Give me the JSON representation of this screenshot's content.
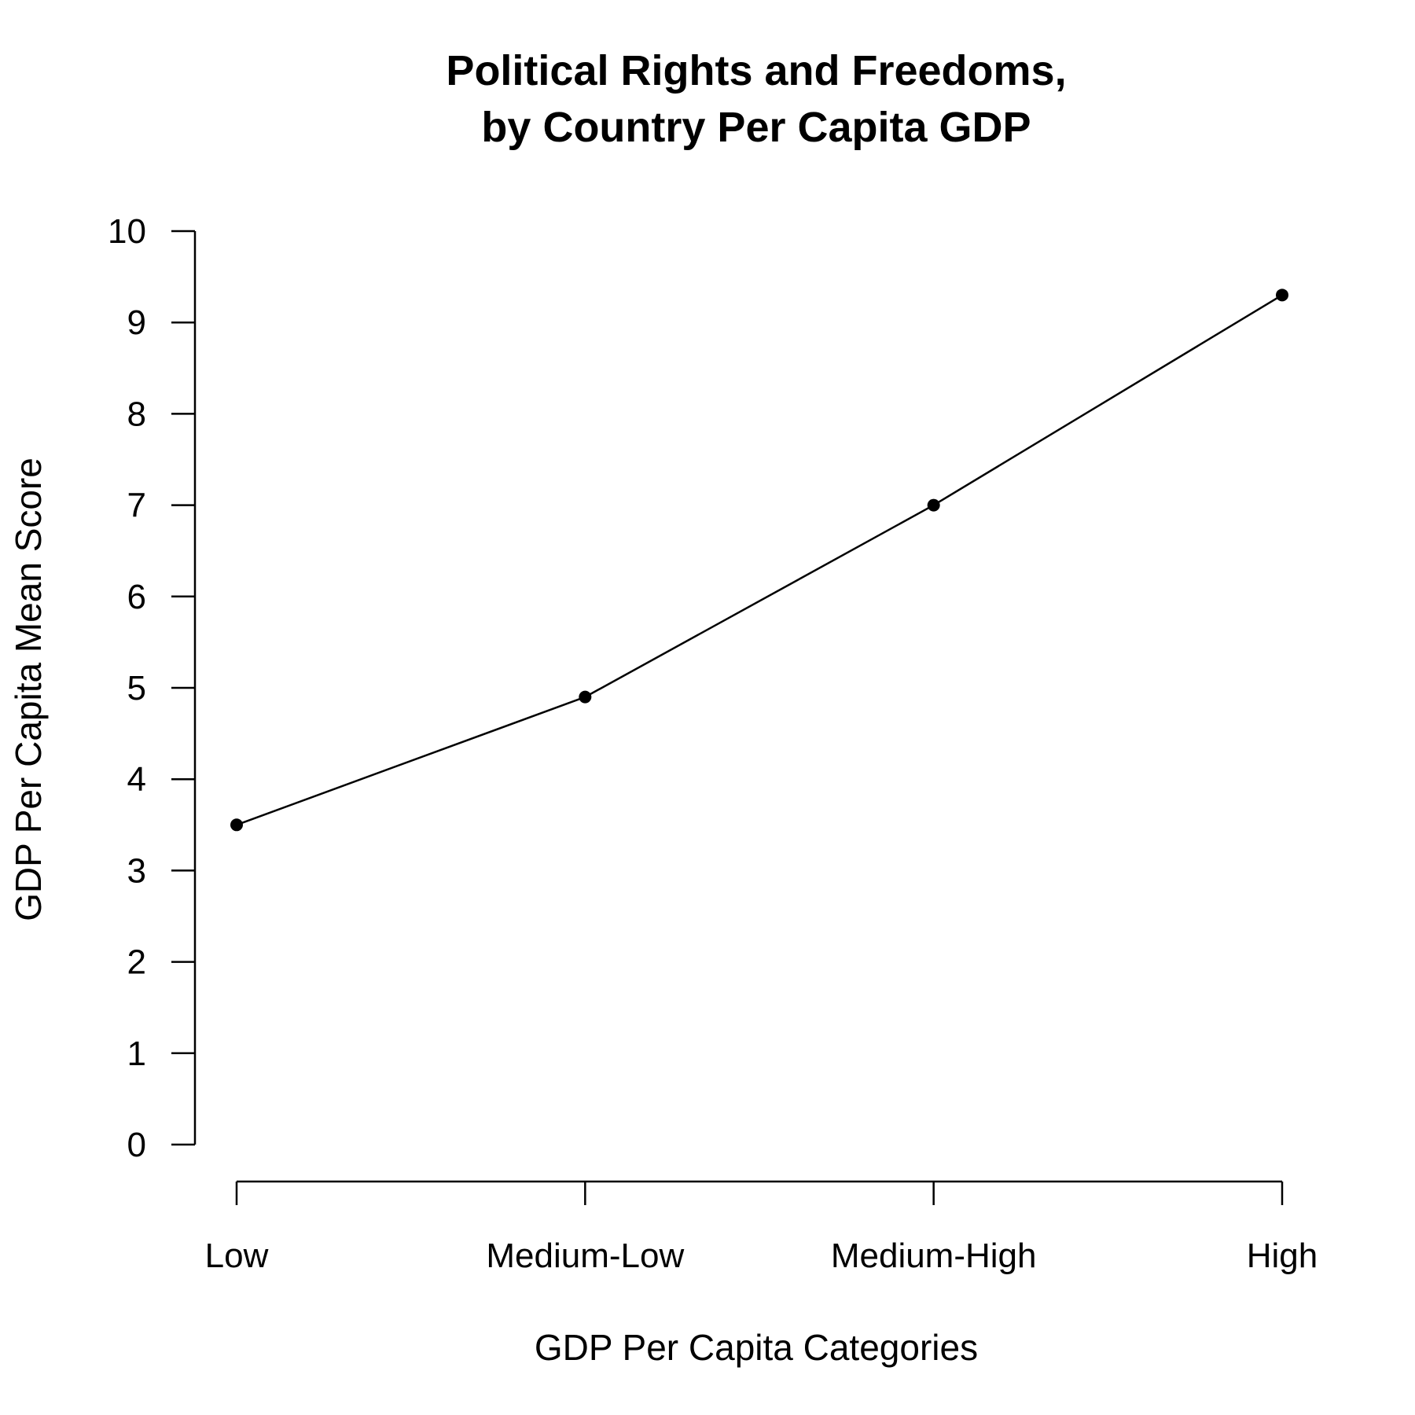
{
  "chart_data": {
    "type": "line",
    "title_lines": [
      "Political Rights and Freedoms,",
      "by Country Per Capita GDP"
    ],
    "xlabel": "GDP Per Capita Categories",
    "ylabel": "GDP Per Capita Mean Score",
    "categories": [
      "Low",
      "Medium-Low",
      "Medium-High",
      "High"
    ],
    "values": [
      3.5,
      4.9,
      7.0,
      9.3
    ],
    "ylim": [
      0,
      10
    ],
    "yticks": [
      "0",
      "1",
      "2",
      "3",
      "4",
      "5",
      "6",
      "7",
      "8",
      "9",
      "10"
    ],
    "grid": false,
    "legend": false,
    "colors": {
      "line": "#000000",
      "points": "#000000"
    }
  }
}
